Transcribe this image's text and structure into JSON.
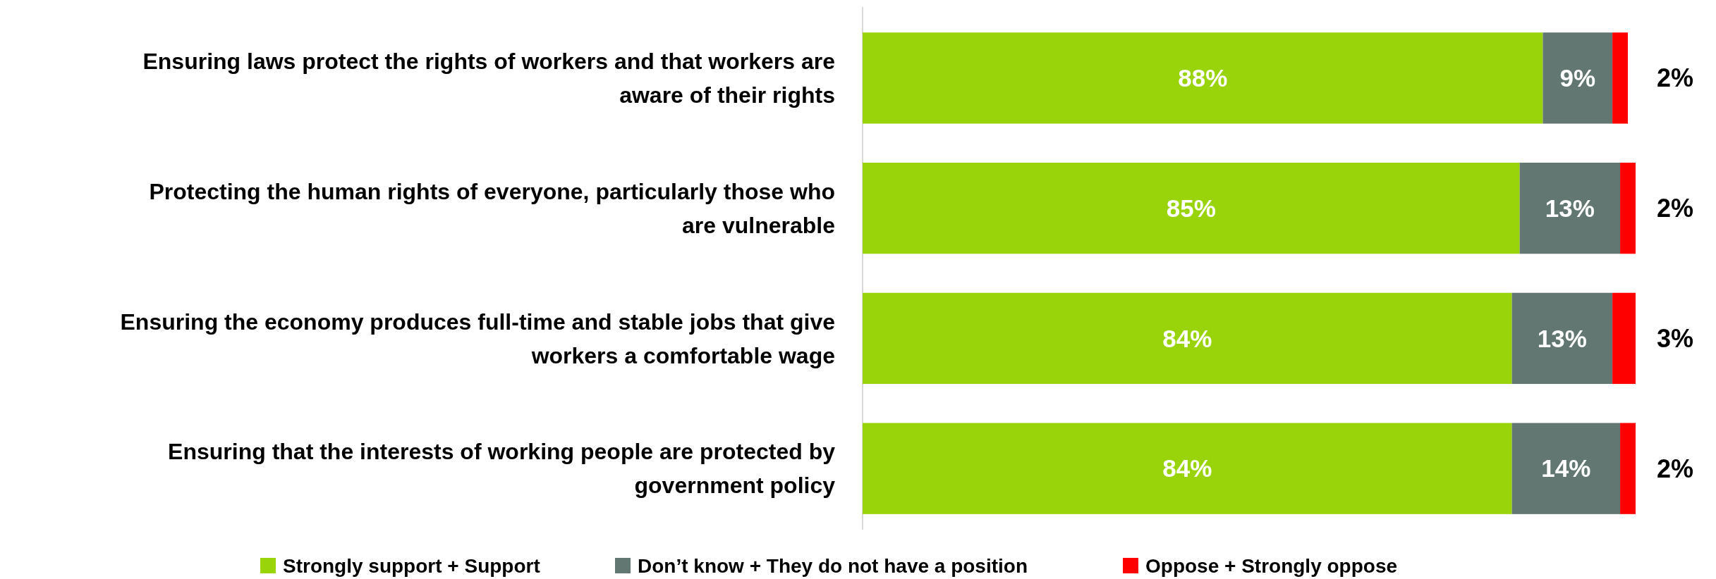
{
  "chart_data": {
    "type": "bar",
    "orientation": "horizontal",
    "stacked": true,
    "legend": "bottom",
    "categories": [
      "Ensuring laws protect the rights of workers and that workers are aware of their rights",
      "Protecting the human rights of everyone, particularly those who are vulnerable",
      "Ensuring the economy produces full-time and stable jobs that give workers a comfortable wage",
      "Ensuring that the interests of working people are protected by government policy"
    ],
    "series": [
      {
        "name": "Strongly support + Support",
        "color": "#99d40b",
        "values": [
          88,
          85,
          84,
          84
        ],
        "value_labels": [
          "88%",
          "85%",
          "84%",
          "84%"
        ]
      },
      {
        "name": "Don’t know + They do not have a position",
        "color": "#627672",
        "values": [
          9,
          13,
          13,
          14
        ],
        "value_labels": [
          "9%",
          "13%",
          "13%",
          "14%"
        ]
      },
      {
        "name": "Oppose + Strongly oppose",
        "color": "#ff0000",
        "values": [
          2,
          2,
          3,
          2
        ],
        "value_labels": [
          "2%",
          "2%",
          "3%",
          "2%"
        ]
      }
    ]
  }
}
